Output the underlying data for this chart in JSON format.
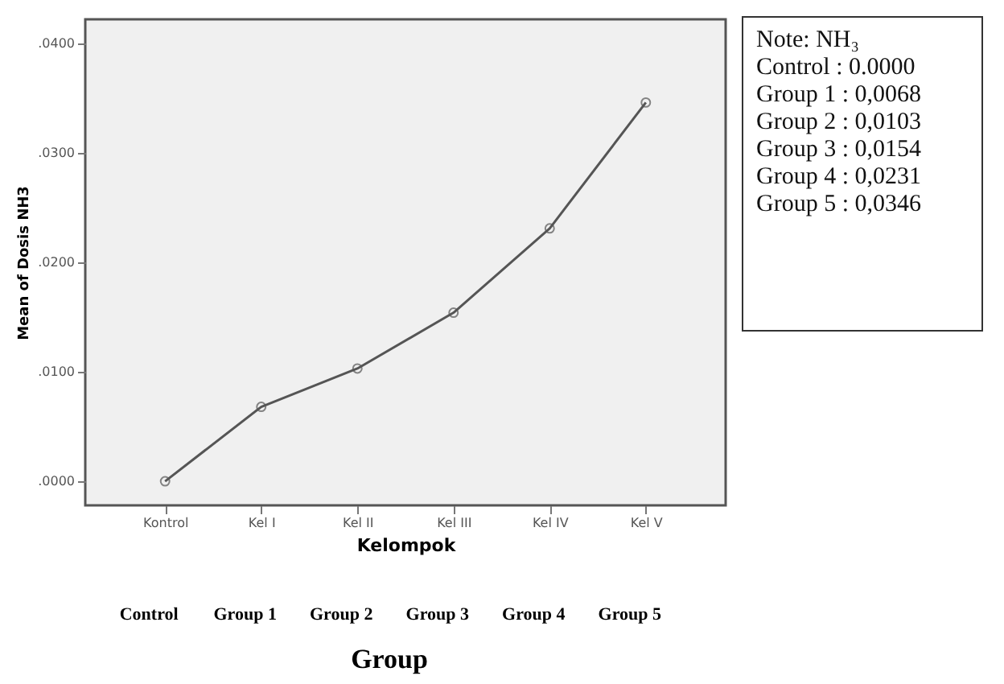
{
  "chart_data": {
    "type": "line",
    "categories": [
      "Kontrol",
      "Kel I",
      "Kel II",
      "Kel III",
      "Kel IV",
      "Kel V"
    ],
    "series": [
      {
        "color": "#555555",
        "values": [
          0.0,
          0.0068,
          0.0103,
          0.0154,
          0.0231,
          0.0346
        ]
      }
    ],
    "xlabel": "Kelompok",
    "ylabel": "Mean of Dosis NH3",
    "ylim": [
      -0.0022,
      0.0422
    ],
    "yticks": [
      {
        "value": 0,
        "label": ".0000"
      },
      {
        "value": 0.01,
        "label": ".0100"
      },
      {
        "value": 0.02,
        "label": ".0200"
      },
      {
        "value": 0.03,
        "label": ".0300"
      },
      {
        "value": 0.04,
        "label": ".0400"
      }
    ],
    "marker": "circle",
    "grid": false,
    "annotations": [
      "Note: NH₃",
      "Control : 0.0000",
      "Group 1 : 0,0068",
      "Group 2 : 0,0103",
      "Group 3 : 0,0154",
      "Group 4 : 0,0231",
      "Group 5 : 0,0346",
      "Control",
      "Group 1",
      "Group 2",
      "Group 3",
      "Group 4",
      "Group 5",
      "Group"
    ]
  }
}
